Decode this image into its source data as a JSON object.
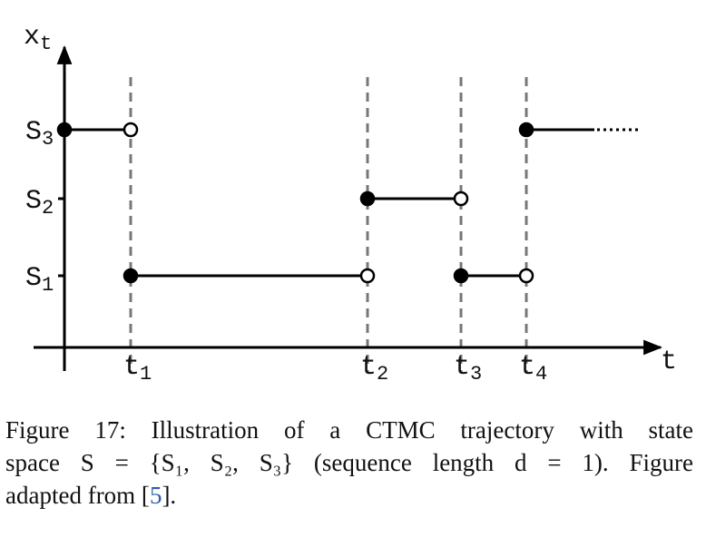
{
  "figure": {
    "y_axis_label": {
      "base": "x",
      "sub": "t"
    },
    "x_axis_label": "t",
    "states": [
      {
        "base": "S",
        "sub": "1"
      },
      {
        "base": "S",
        "sub": "2"
      },
      {
        "base": "S",
        "sub": "3"
      }
    ],
    "times": [
      {
        "base": "t",
        "sub": "1"
      },
      {
        "base": "t",
        "sub": "2"
      },
      {
        "base": "t",
        "sub": "3"
      },
      {
        "base": "t",
        "sub": "4"
      }
    ]
  },
  "caption": {
    "lines": [
      "Figure 17: Illustration of a CTMC trajectory with state",
      "space S = {S₁, S₂, S₃} (sequence length d = 1).  Figure"
    ],
    "last_before": "adapted from [",
    "ref": "5",
    "last_after": "]."
  }
}
